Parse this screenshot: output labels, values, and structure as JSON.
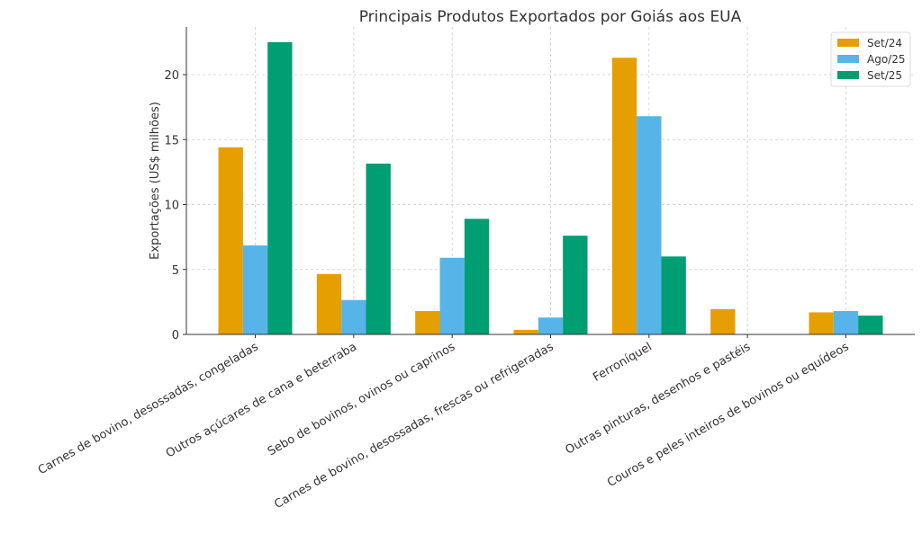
{
  "chart_data": {
    "type": "bar",
    "title": "Principais Produtos Exportados por Goiás aos EUA",
    "xlabel": "",
    "ylabel": "Exportações (US$ milhões)",
    "ylim": [
      0,
      23.67
    ],
    "yticks": [
      0,
      5,
      10,
      15,
      20
    ],
    "grid": true,
    "legend_position": "top-right",
    "categories": [
      "Carnes de bovino, desossadas, congeladas",
      "Outros açúcares de cana e beterraba",
      "Sebo de bovinos, ovinos ou caprinos",
      "Carnes de bovino, desossadas, frescas ou refrigeradas",
      "Ferroníquel",
      "Outras pinturas, desenhos e pastéis",
      "Couros e peles inteiros de bovinos ou equídeos"
    ],
    "series": [
      {
        "name": "Set/24",
        "color": "#E69F00",
        "values": [
          14.4,
          4.65,
          1.8,
          0.35,
          21.3,
          1.95,
          1.7
        ]
      },
      {
        "name": "Ago/25",
        "color": "#56B4E9",
        "values": [
          6.85,
          2.65,
          5.9,
          1.3,
          16.8,
          0,
          1.8
        ]
      },
      {
        "name": "Set/25",
        "color": "#009E73",
        "values": [
          22.5,
          13.15,
          8.9,
          7.6,
          6.0,
          0,
          1.45
        ]
      }
    ]
  }
}
